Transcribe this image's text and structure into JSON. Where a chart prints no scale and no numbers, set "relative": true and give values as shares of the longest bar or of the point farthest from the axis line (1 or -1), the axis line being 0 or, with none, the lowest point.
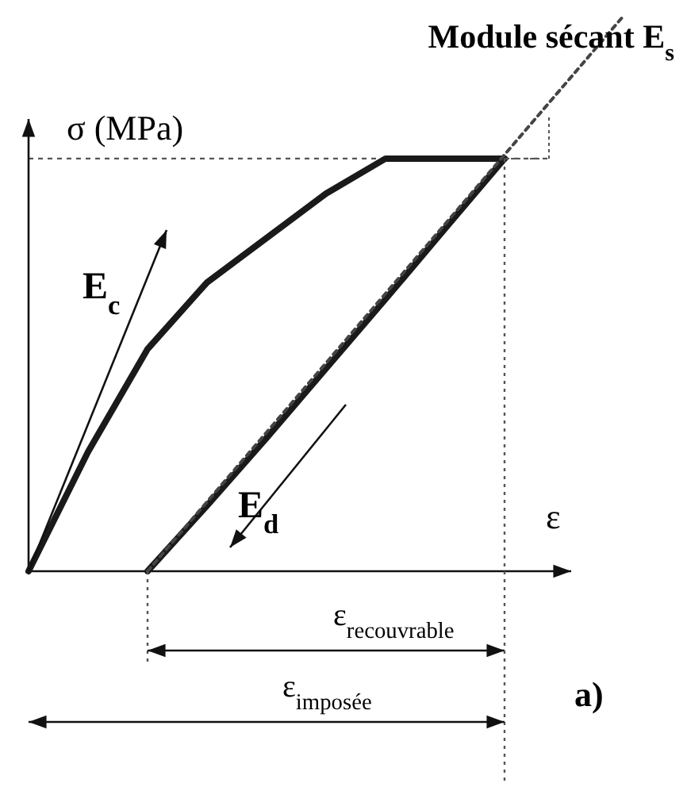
{
  "chart_data": {
    "type": "line",
    "relative": true,
    "xlabel": "ε",
    "ylabel": "σ (MPa)",
    "categories": [
      null,
      null,
      null,
      null,
      null,
      null,
      null,
      null,
      null,
      null,
      null
    ],
    "series": [
      {
        "color": "#1a1a1a",
        "line_style": "solid",
        "values": [
          0,
          0.215,
          0.4,
          0.52,
          0.6,
          0.68,
          0.743,
          0.743,
          0.743,
          null,
          null
        ]
      },
      {
        "color": "#1a1a1a",
        "line_style": "solid",
        "values": [
          null,
          null,
          0,
          0.118,
          0.24,
          0.365,
          0.49,
          0.617,
          0.743,
          null,
          null
        ]
      },
      {
        "name": "Module sécant E$_{s}$",
        "color": "#444444",
        "line_style": "dotted",
        "values": [
          null,
          null,
          0,
          0.125,
          0.25,
          0.375,
          0.5,
          0.625,
          0.75,
          0.875,
          1
        ]
      }
    ],
    "ref_lines": [
      {
        "axis": "y",
        "value": 0.743,
        "line_style": "dotted",
        "color": "#555555"
      }
    ],
    "annotations": [
      "E$_{c}$",
      "E$_{d}$",
      "ε$_{recouvrable}$",
      "ε$_{imposée}$",
      "a)"
    ]
  }
}
